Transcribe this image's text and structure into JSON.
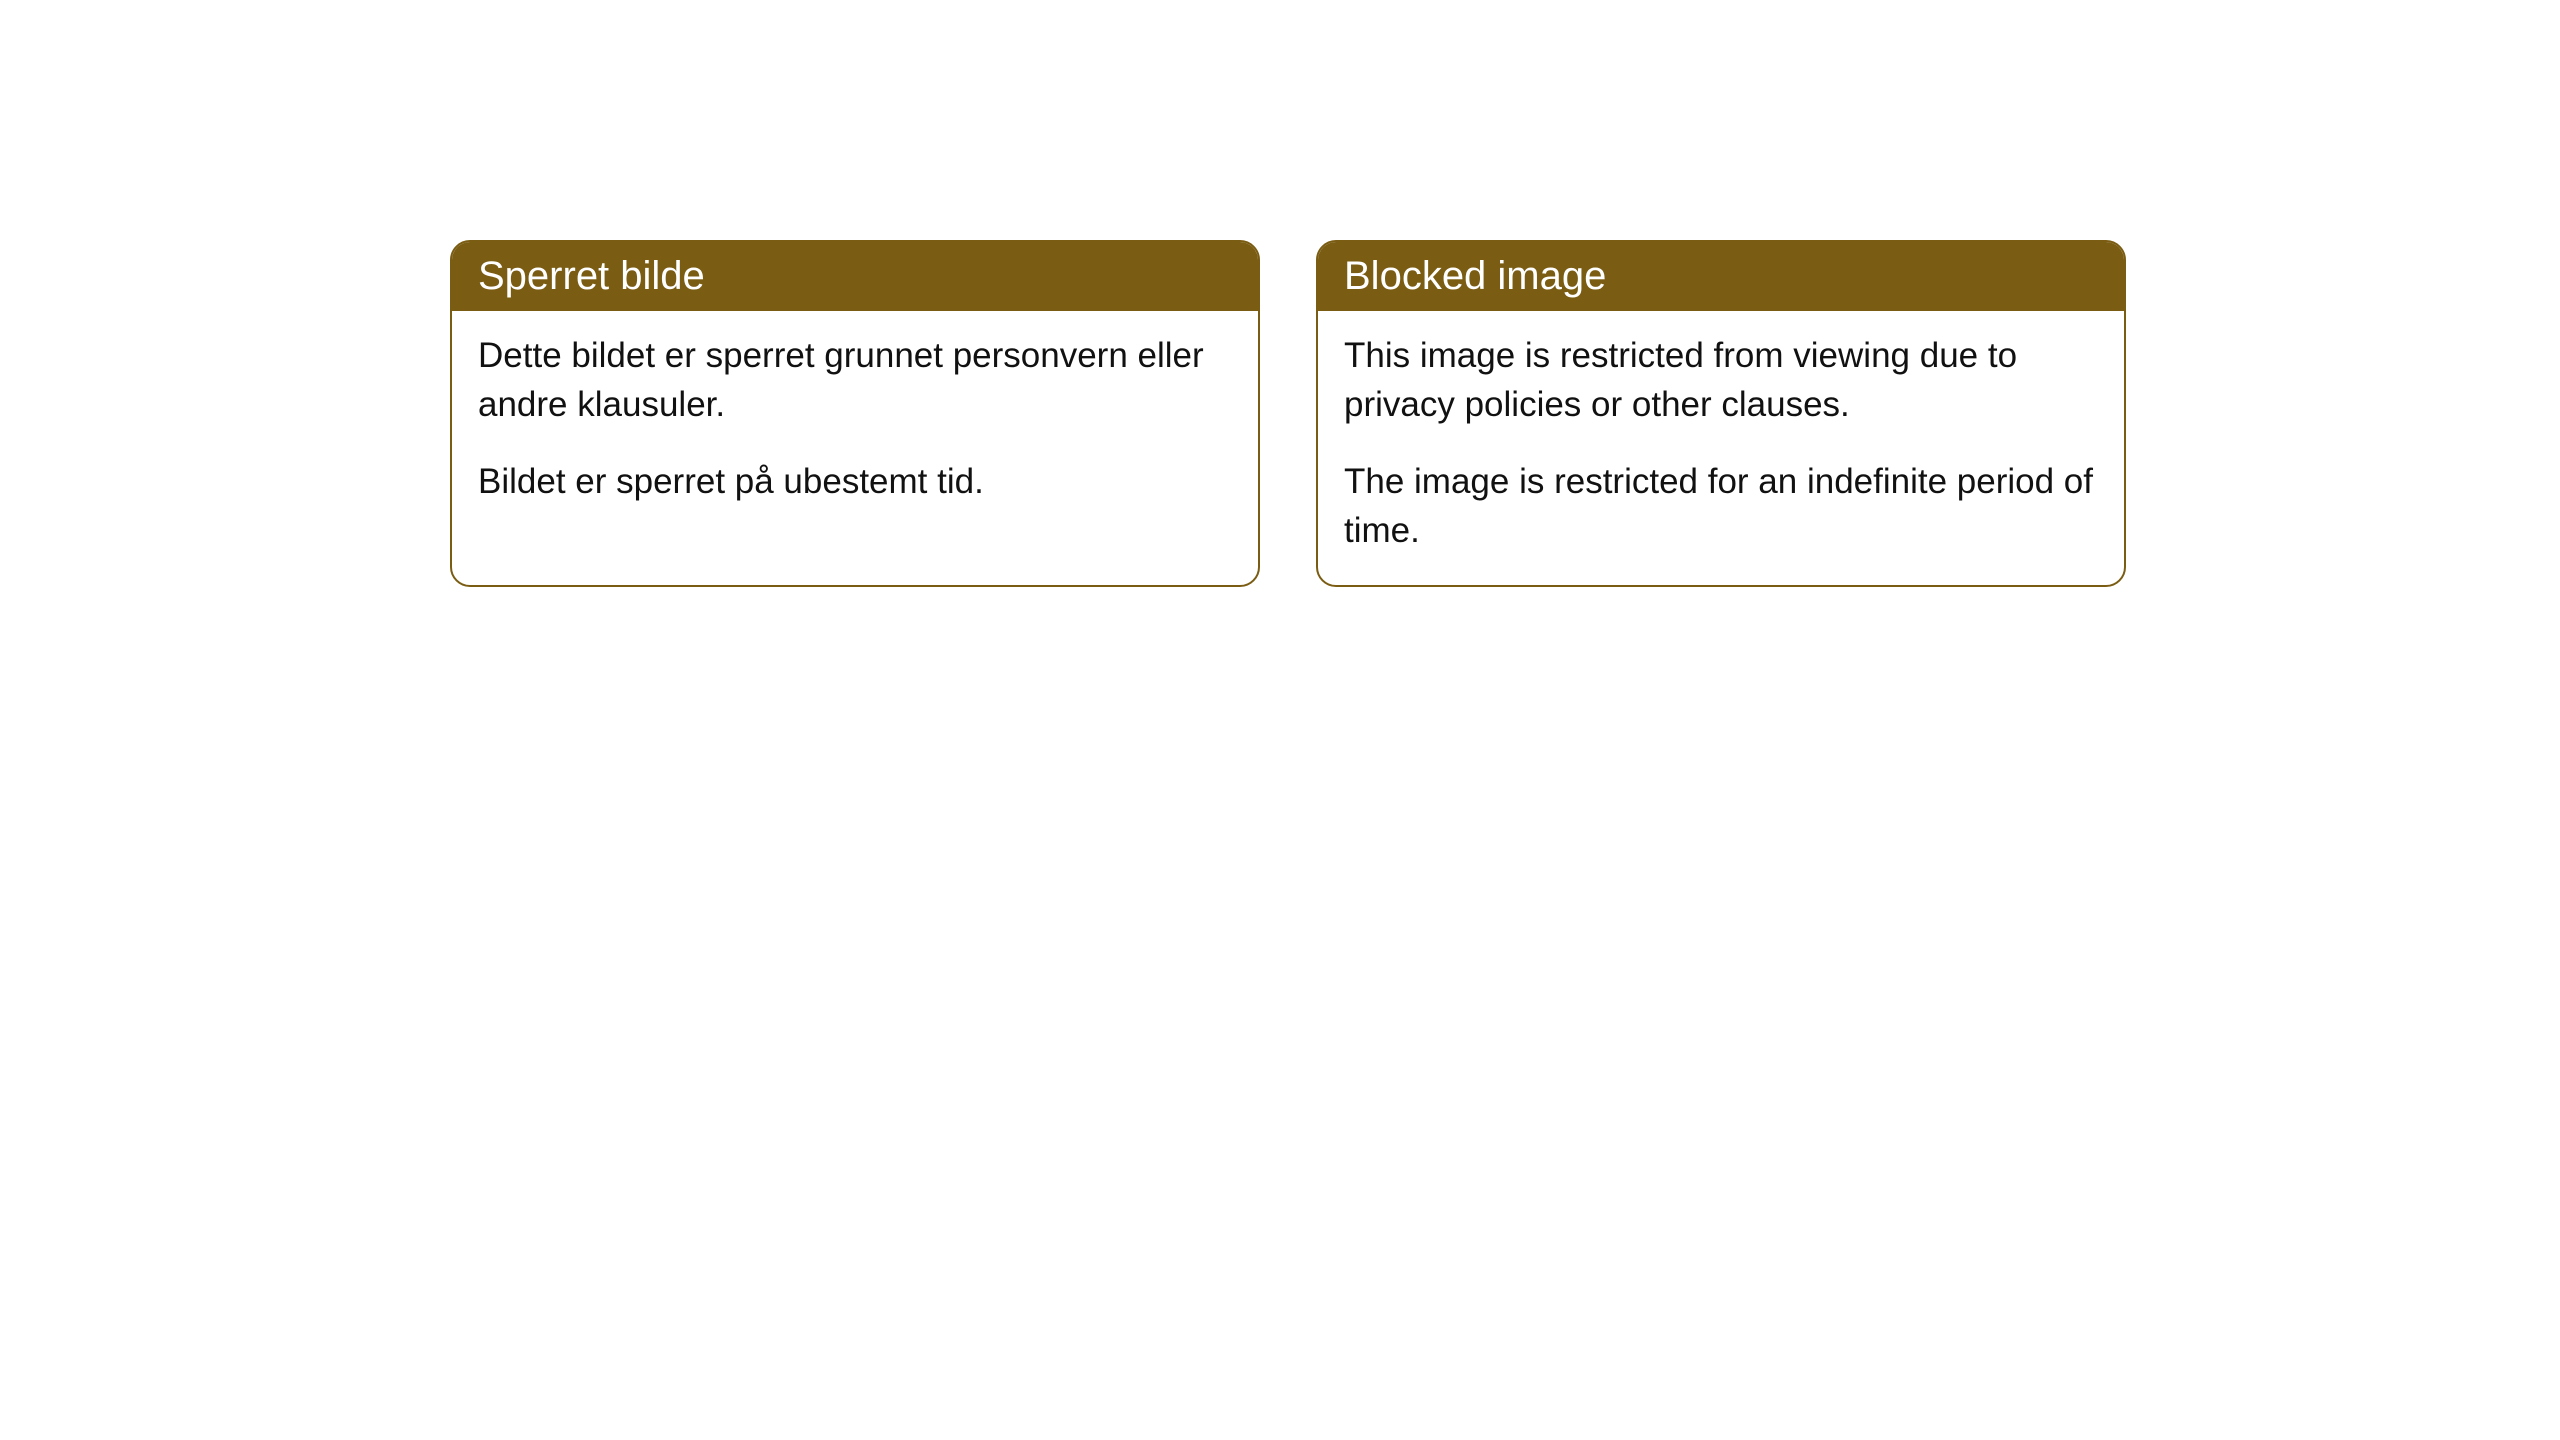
{
  "cards": {
    "left": {
      "title": "Sperret bilde",
      "paragraph1": "Dette bildet er sperret grunnet personvern eller andre klausuler.",
      "paragraph2": "Bildet er sperret på ubestemt tid."
    },
    "right": {
      "title": "Blocked image",
      "paragraph1": "This image is restricted from viewing due to privacy policies or other clauses.",
      "paragraph2": "The image is restricted for an indefinite period of time."
    }
  },
  "style": {
    "header_bg": "#7a5c12",
    "header_text_color": "#ffffff",
    "body_text_color": "#111111",
    "border_color": "#7a5c12",
    "card_bg": "#ffffff",
    "title_fontsize": 40,
    "body_fontsize": 35,
    "border_radius": 20
  }
}
